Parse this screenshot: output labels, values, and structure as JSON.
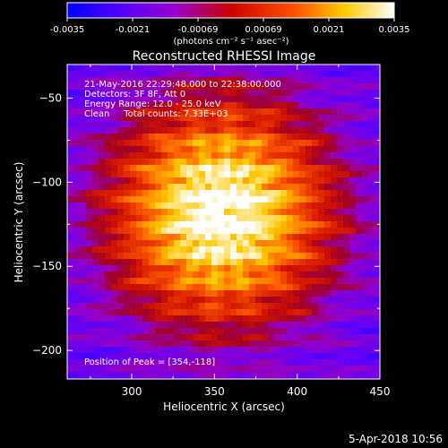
{
  "chart_data": {
    "type": "heatmap",
    "title": "Reconstructed RHESSI Image",
    "xlabel": "Heliocentric X (arcsec)",
    "ylabel": "Heliocentric Y (arcsec)",
    "xlim": [
      261,
      450
    ],
    "ylim": [
      -217,
      -30
    ],
    "x_ticks": [
      300,
      350,
      400,
      450
    ],
    "y_ticks": [
      -50,
      -100,
      -150,
      -200
    ],
    "colorbar": {
      "colormap": "hot",
      "range": [
        -0.0035,
        0.0035
      ],
      "ticks": [
        "-0.0035",
        "-0.0021",
        "-0.00069",
        "0.00069",
        "0.0021",
        "0.0035"
      ],
      "unit_label": "(photons cm⁻² s⁻¹ asec⁻²)",
      "colors": [
        "#0000ff",
        "#5500ff",
        "#9900cc",
        "#cc0000",
        "#ff5500",
        "#ffcc00",
        "#ffffff"
      ]
    },
    "peak": {
      "x": 354,
      "y": -118
    },
    "info": [
      "21-May-2016 22:29:48.000 to 22:38:00.000",
      "Detectors: 3F 8F, Att 0",
      "Energy Range: 12.0 - 25.0 keV",
      "Clean     Total counts: 7.33E+03"
    ],
    "peak_label": "Position of Peak = [354,-118]"
  },
  "footer": {
    "timestamp": "5-Apr-2018 10:56"
  }
}
